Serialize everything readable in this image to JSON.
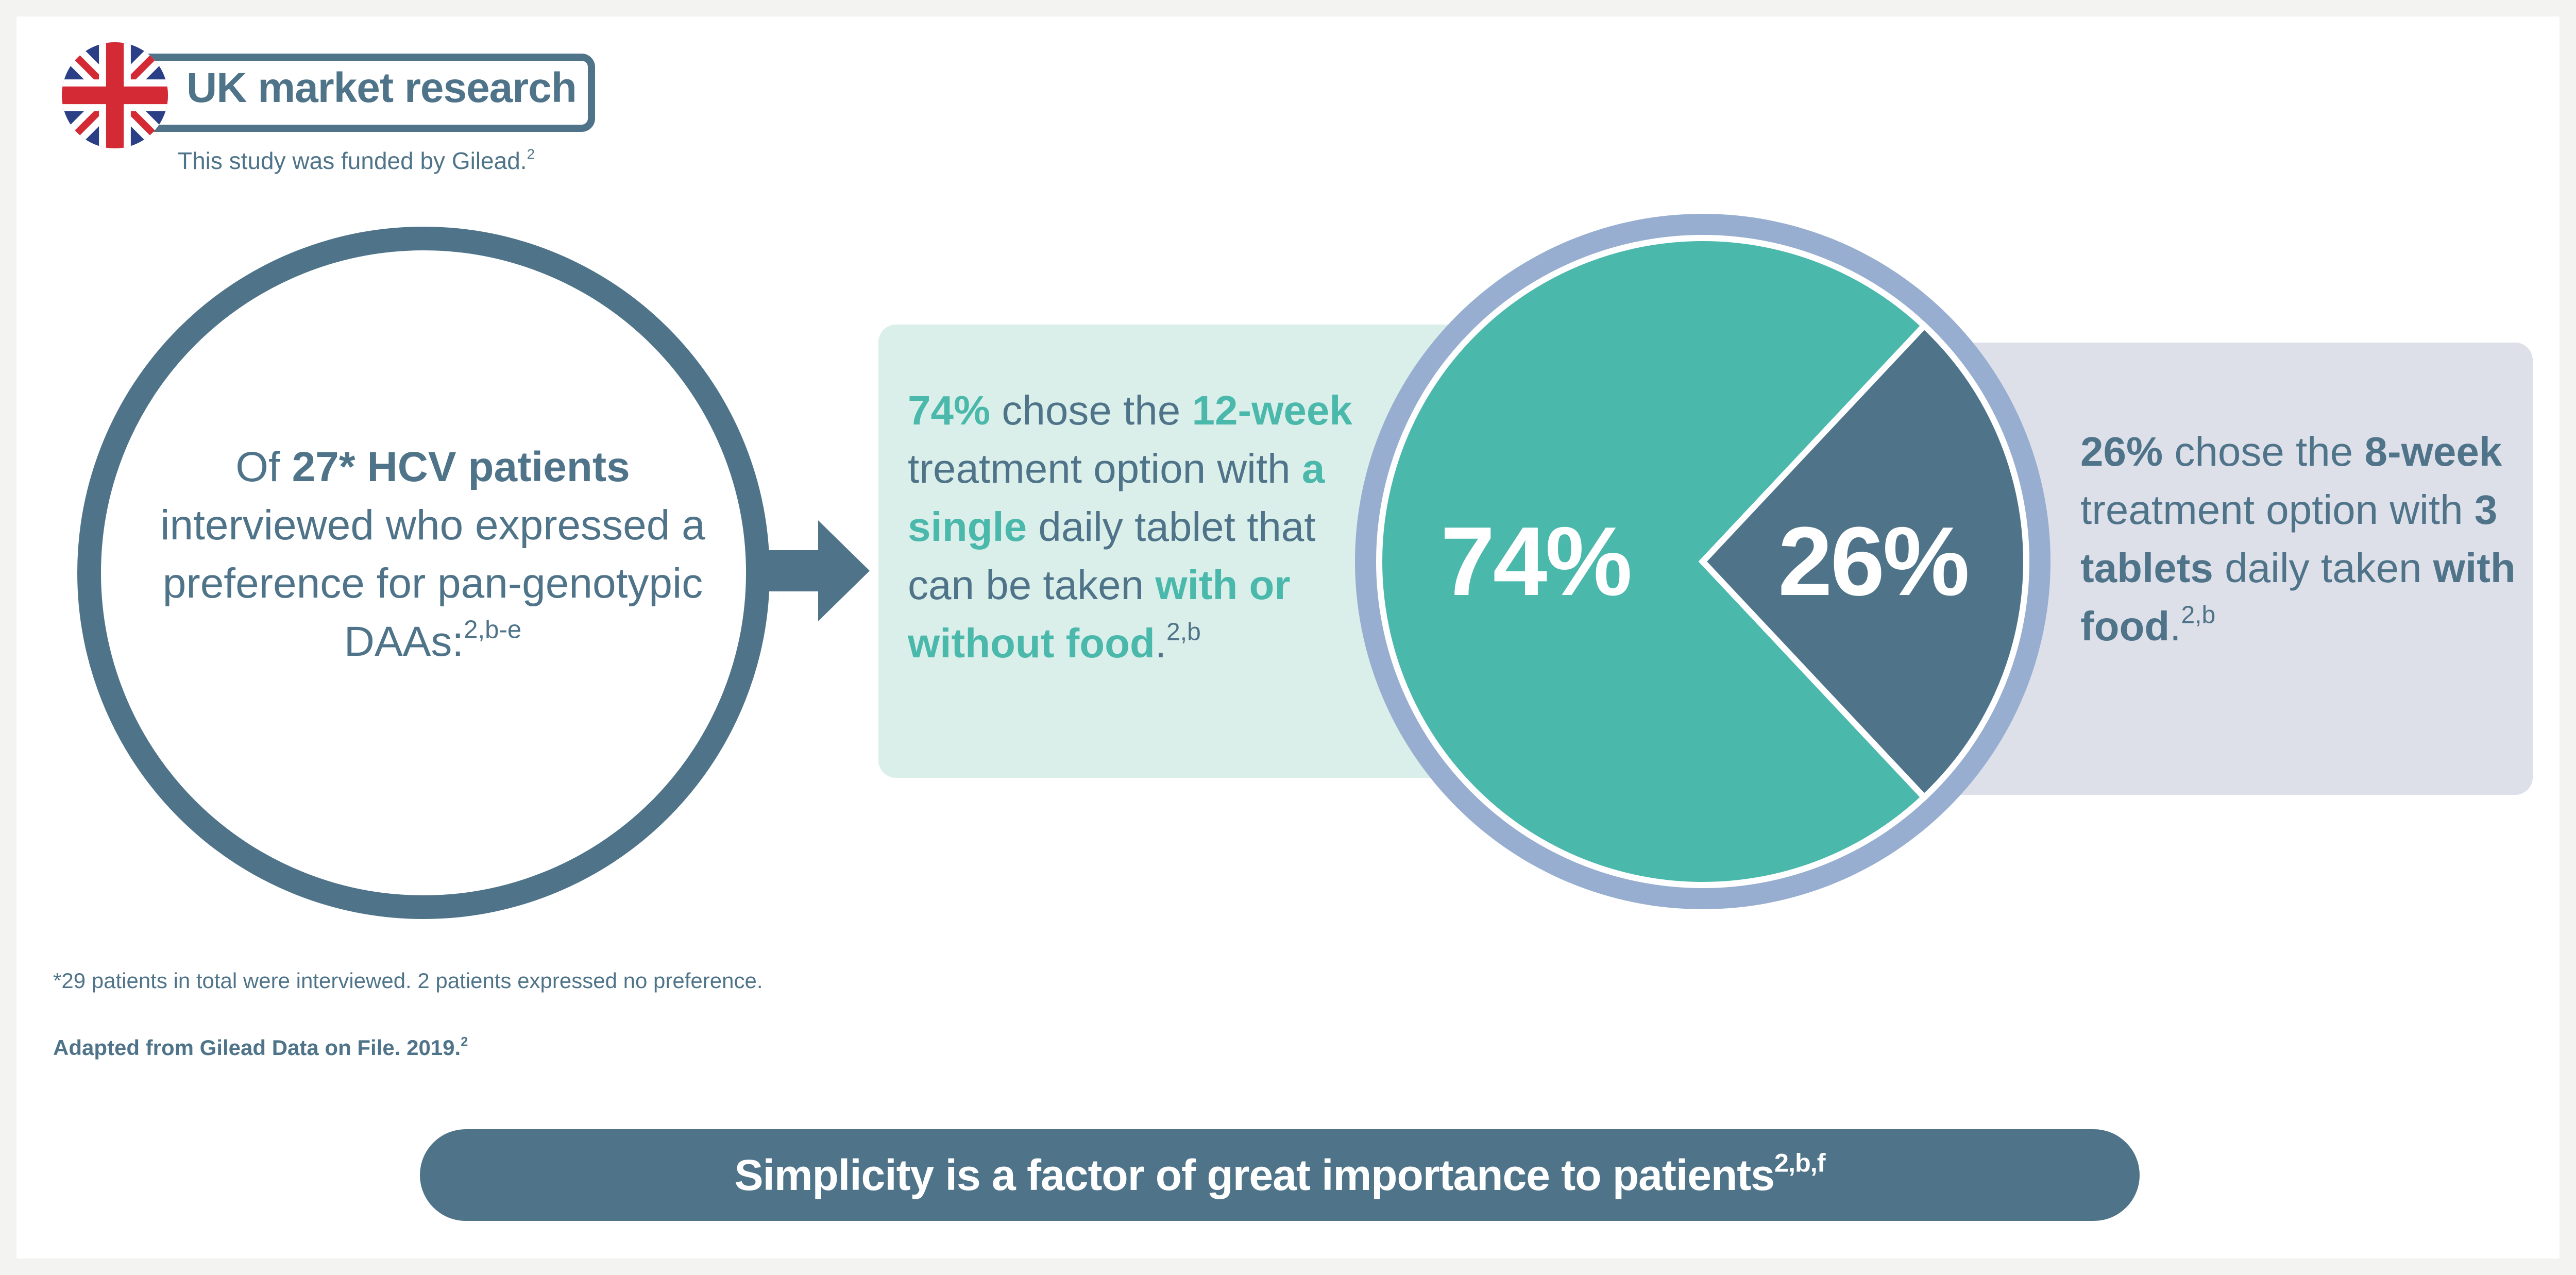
{
  "header": {
    "title": "UK market research",
    "funded_text": "This study was funded by Gilead.",
    "funded_sup": "2"
  },
  "left_circle": {
    "t1": "Of ",
    "t2": "27* HCV patients",
    "t3": " interviewed who expressed a preference for pan-genotypic DAAs:",
    "sup": "2,b-e"
  },
  "green_box": {
    "p1": "74%",
    "p2": " chose the ",
    "p3": "12-week",
    "p4": " treatment option with ",
    "p5": "a single",
    "p6": " daily tablet that can  be taken ",
    "p7": "with or without food",
    "p8": ".",
    "sup": "2,b"
  },
  "grey_box": {
    "p1": "26%",
    "p2": " chose the ",
    "p3": "8-week",
    "p4": " treatment option with ",
    "p5": "3 tablets",
    "p6": " daily taken ",
    "p7": "with food",
    "p8": ".",
    "sup": "2,b"
  },
  "chart_data": {
    "type": "pie",
    "slices": [
      {
        "label": "74%",
        "value": 74,
        "color": "#4bb8ac"
      },
      {
        "label": "26%",
        "value": 26,
        "color": "#4f7489"
      }
    ],
    "ring_color": "#97aed0"
  },
  "footnote": "*29 patients in total were interviewed. 2 patients expressed no preference.",
  "source": {
    "text": "Adapted from Gilead Data on File. 2019.",
    "sup": "2"
  },
  "banner": {
    "text": "Simplicity is a factor of great importance to patients",
    "sup": "2,b,f"
  },
  "colors": {
    "slate": "#4f7489",
    "teal": "#4bb8ac",
    "mint_bg": "#dbefea",
    "grey_bg": "#dddfe9"
  }
}
